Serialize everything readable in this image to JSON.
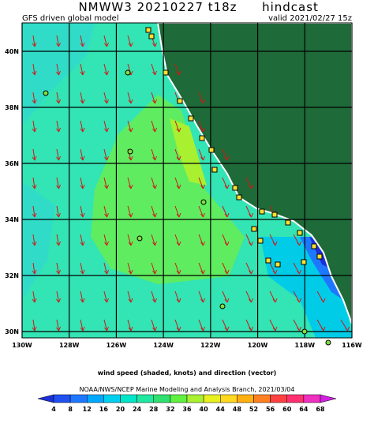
{
  "header": {
    "title": "NMWW3 20210227 t18z",
    "run_type": "hindcast",
    "model": "GFS driven global model",
    "valid": "valid 2021/02/27 15z"
  },
  "axes": {
    "lat_labels": [
      "40N",
      "38N",
      "36N",
      "34N",
      "32N",
      "30N"
    ],
    "lon_labels": [
      "130W",
      "128W",
      "126W",
      "124W",
      "122W",
      "120W",
      "118W",
      "116W"
    ]
  },
  "caption": "wind speed (shaded, knots) and direction (vector)",
  "colorbar": {
    "credit": "NOAA/NWS/NCEP Marine Modeling and Analysis Branch, 2021/03/04",
    "labels": [
      4,
      8,
      12,
      16,
      20,
      24,
      28,
      32,
      36,
      40,
      44,
      48,
      52,
      56,
      60,
      64,
      68
    ],
    "colors": [
      "#1c2fd8",
      "#2050f0",
      "#1e78ff",
      "#00a8ff",
      "#00d0f0",
      "#00e6c8",
      "#20e8a0",
      "#30e070",
      "#60f040",
      "#a8f030",
      "#e8f020",
      "#ffd820",
      "#ffb010",
      "#ff8020",
      "#ff4040",
      "#ff3070",
      "#f030c0",
      "#d020e0"
    ]
  }
}
